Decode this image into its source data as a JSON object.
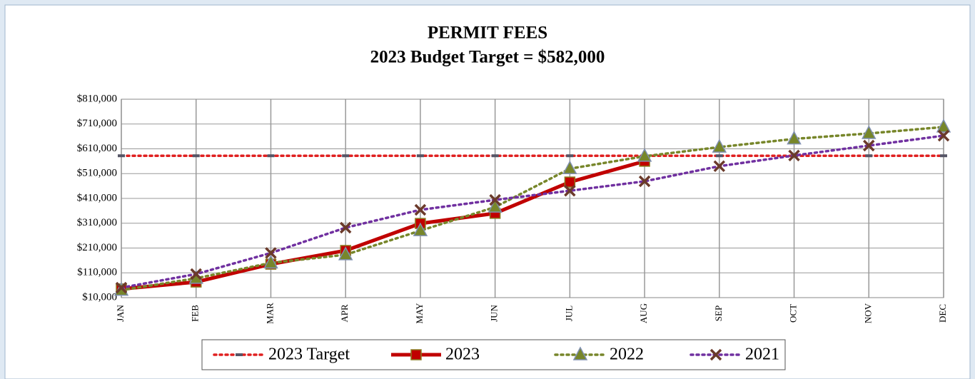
{
  "chart_data": {
    "type": "line",
    "title": "PERMIT FEES",
    "subtitle": "2023 Budget Target = $582,000",
    "categories": [
      "JAN",
      "FEB",
      "MAR",
      "APR",
      "MAY",
      "JUN",
      "JUL",
      "AUG",
      "SEP",
      "OCT",
      "NOV",
      "DEC"
    ],
    "series": [
      {
        "name": "2023 Target",
        "color": "#e02020",
        "line_style": "dotted",
        "marker": "dash",
        "values": [
          582000,
          582000,
          582000,
          582000,
          582000,
          582000,
          582000,
          582000,
          582000,
          582000,
          582000,
          582000
        ]
      },
      {
        "name": "2023",
        "color": "#c00000",
        "line_style": "solid",
        "marker": "square",
        "values": [
          45000,
          73000,
          145000,
          200000,
          309000,
          350000,
          476000,
          560000,
          null,
          null,
          null,
          null
        ]
      },
      {
        "name": "2022",
        "color": "#77862a",
        "line_style": "dotted",
        "marker": "triangle",
        "values": [
          40000,
          88000,
          150000,
          183000,
          280000,
          375000,
          530000,
          580000,
          617000,
          650000,
          672000,
          698000
        ]
      },
      {
        "name": "2021",
        "color": "#7030a0",
        "line_style": "dotted",
        "marker": "x",
        "values": [
          50000,
          105000,
          190000,
          292000,
          364000,
          404000,
          441000,
          479000,
          540000,
          583000,
          623000,
          663000
        ]
      }
    ],
    "ylim": [
      10000,
      810000
    ],
    "yticks": [
      {
        "value": 10000,
        "label": "$10,000"
      },
      {
        "value": 110000,
        "label": "$110,000"
      },
      {
        "value": 210000,
        "label": "$210,000"
      },
      {
        "value": 310000,
        "label": "$310,000"
      },
      {
        "value": 410000,
        "label": "$410,000"
      },
      {
        "value": 510000,
        "label": "$510,000"
      },
      {
        "value": 610000,
        "label": "$610,000"
      },
      {
        "value": 710000,
        "label": "$710,000"
      },
      {
        "value": 810000,
        "label": "$810,000"
      }
    ],
    "grid": true,
    "legend": "bottom"
  }
}
